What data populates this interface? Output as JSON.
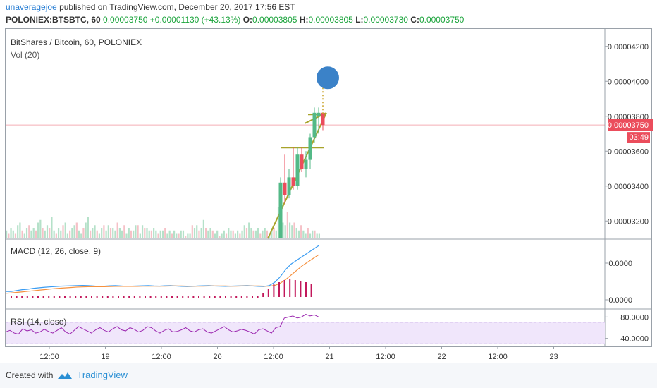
{
  "header": {
    "author": "unaveragejoe",
    "published_text": "published on TradingView.com, December 20, 2017 17:56 EST",
    "symbol": "POLONIEX:BTSBTC, 60",
    "last_price": "0.00003750",
    "change": "+0.00001130 (+43.13%)",
    "open_label": "O:",
    "open": "0.00003805",
    "high_label": "H:",
    "high": "0.00003805",
    "low_label": "L:",
    "low": "0.00003730",
    "close_label": "C:",
    "close": "0.00003750"
  },
  "chart_data": [
    {
      "type": "candlestick",
      "title": "BitShares / Bitcoin, 60, POLONIEX",
      "subtitle": "Vol (20)",
      "y_ticks": [
        "0.00004200",
        "0.00004000",
        "0.00003800",
        "0.00003600",
        "0.00003400",
        "0.00003200"
      ],
      "y_tick_values": [
        4.2e-05,
        4e-05,
        3.8e-05,
        3.6e-05,
        3.4e-05,
        3.2e-05
      ],
      "ylim": [
        3.1e-05,
        4.3e-05
      ],
      "last_price_label": "0.00003750",
      "last_price": 3.75e-05,
      "countdown_label": "03:49",
      "candles": [
        {
          "o": 3.1e-05,
          "h": 3.45e-05,
          "l": 3.1e-05,
          "c": 3.42e-05,
          "up": true
        },
        {
          "o": 3.42e-05,
          "h": 3.58e-05,
          "l": 3.3e-05,
          "c": 3.35e-05,
          "up": false
        },
        {
          "o": 3.35e-05,
          "h": 3.5e-05,
          "l": 3.33e-05,
          "c": 3.45e-05,
          "up": true
        },
        {
          "o": 3.45e-05,
          "h": 3.62e-05,
          "l": 3.38e-05,
          "c": 3.4e-05,
          "up": false
        },
        {
          "o": 3.4e-05,
          "h": 3.62e-05,
          "l": 3.38e-05,
          "c": 3.58e-05,
          "up": true
        },
        {
          "o": 3.58e-05,
          "h": 3.62e-05,
          "l": 3.48e-05,
          "c": 3.5e-05,
          "up": false
        },
        {
          "o": 3.5e-05,
          "h": 3.6e-05,
          "l": 3.45e-05,
          "c": 3.55e-05,
          "up": true
        },
        {
          "o": 3.55e-05,
          "h": 3.7e-05,
          "l": 3.5e-05,
          "c": 3.68e-05,
          "up": true
        },
        {
          "o": 3.68e-05,
          "h": 3.85e-05,
          "l": 3.65e-05,
          "c": 3.82e-05,
          "up": true
        },
        {
          "o": 3.82e-05,
          "h": 3.85e-05,
          "l": 3.7e-05,
          "c": 3.8e-05,
          "up": true
        },
        {
          "o": 3.82e-05,
          "h": 3.82e-05,
          "l": 3.72e-05,
          "c": 3.75e-05,
          "up": false
        }
      ],
      "volumes": [
        3,
        2,
        4,
        3,
        2,
        5,
        6,
        3,
        2,
        4,
        5,
        3,
        4,
        3,
        6,
        7,
        4,
        3,
        5,
        4,
        8,
        3,
        2,
        4,
        3,
        5,
        6,
        2,
        3,
        4,
        5,
        6,
        3,
        2,
        4,
        6,
        8,
        3,
        4,
        5,
        3,
        2,
        4,
        5,
        3,
        5,
        4,
        4,
        3,
        6,
        4,
        3,
        5,
        2,
        4,
        3,
        3,
        5,
        5,
        2,
        5,
        4,
        4,
        3,
        3,
        4,
        3,
        2,
        3,
        3,
        4,
        2,
        3,
        2,
        3,
        2,
        2,
        3,
        3,
        1,
        2,
        2,
        5,
        4,
        5,
        3,
        4,
        7,
        4,
        3,
        4,
        3,
        2,
        3,
        1,
        2,
        3,
        2,
        4,
        3,
        3,
        2,
        3,
        2,
        3,
        5,
        4,
        6,
        4,
        3,
        3,
        4,
        2,
        3,
        4,
        3,
        2,
        4,
        4,
        3,
        12,
        8,
        6,
        5,
        10,
        6,
        5,
        6,
        4,
        3,
        5,
        3,
        2,
        4,
        2,
        3,
        3,
        2,
        2
      ],
      "annotations": {
        "target_circle_price": 4.02e-05,
        "resistance_price": 3.62e-05
      }
    },
    {
      "type": "line",
      "title": "MACD (12, 26, close, 9)",
      "y_ticks": [
        "0.0000",
        "0.0000"
      ],
      "series": [
        {
          "values": [
            -2,
            -2,
            -1.5,
            -1,
            -0.8,
            -0.3,
            0,
            0.3,
            0.5,
            0.7,
            0.9,
            1,
            1.1,
            1.2,
            1.3,
            1.2,
            1,
            0.8,
            0.9,
            1.1,
            1.2,
            1,
            0.8,
            0.9,
            1,
            1.1,
            1.2,
            1,
            0.9,
            1.1,
            1.2,
            1,
            0.8,
            0.7,
            0.8,
            1,
            1.1,
            1.2,
            1,
            0.9,
            0.8,
            0.9,
            1,
            1.1,
            1.2,
            1,
            0.8,
            0.7,
            1.2,
            3,
            6,
            10,
            13,
            15,
            17,
            19,
            21,
            23
          ]
        },
        {
          "values": [
            -3,
            -2.8,
            -2.5,
            -2.2,
            -1.9,
            -1.6,
            -1.3,
            -1,
            -0.7,
            -0.4,
            -0.2,
            0,
            0.2,
            0.4,
            0.5,
            0.6,
            0.6,
            0.6,
            0.6,
            0.7,
            0.8,
            0.8,
            0.8,
            0.8,
            0.8,
            0.9,
            0.9,
            0.9,
            0.9,
            0.9,
            1,
            1,
            1,
            0.9,
            0.9,
            0.9,
            0.9,
            1,
            1,
            1,
            1,
            0.9,
            0.9,
            1,
            1,
            1,
            1,
            0.9,
            0.9,
            1.3,
            2.5,
            4.5,
            7,
            9.5,
            12,
            14,
            16,
            18
          ]
        }
      ],
      "histogram": [
        -1,
        -1,
        -1,
        -1,
        -1,
        -1,
        -1,
        -1,
        -1,
        -1,
        -1,
        -1,
        -1,
        -1,
        -1,
        -1,
        -1,
        -1,
        -1,
        -1,
        -1,
        -1,
        -1,
        -1,
        -1,
        -1,
        -1,
        -1,
        -1,
        -1,
        -1,
        -1,
        -1,
        -1,
        -1,
        -1,
        -1,
        -1,
        -1,
        -1,
        -1,
        -1,
        -1,
        -1,
        -1,
        -1,
        -1,
        1,
        2,
        3,
        3.5,
        4,
        4.2,
        4,
        3.8,
        3.5,
        3
      ]
    },
    {
      "type": "line",
      "title": "RSI (14, close)",
      "y_ticks": [
        "80.0000",
        "40.0000"
      ],
      "y_tick_values": [
        80,
        40
      ],
      "ylim": [
        25,
        95
      ],
      "band": [
        30,
        70
      ],
      "series": [
        {
          "values": [
            52,
            55,
            50,
            48,
            58,
            54,
            56,
            50,
            52,
            57,
            53,
            50,
            55,
            60,
            52,
            48,
            55,
            62,
            58,
            54,
            50,
            56,
            60,
            55,
            52,
            58,
            62,
            56,
            54,
            60,
            57,
            52,
            55,
            62,
            60,
            54,
            50,
            55,
            58,
            52,
            53,
            56,
            60,
            54,
            52,
            56,
            58,
            52,
            50,
            54,
            58,
            62,
            56,
            52,
            54,
            57,
            55,
            52,
            48,
            56,
            58,
            54,
            50,
            60,
            62,
            78,
            80,
            82,
            78,
            80,
            85,
            82,
            84,
            80
          ]
        }
      ]
    }
  ],
  "x_axis": {
    "labels": [
      "12:00",
      "19",
      "12:00",
      "20",
      "12:00",
      "21",
      "12:00",
      "22",
      "12:00",
      "23"
    ]
  },
  "footer": {
    "created_with": "Created with",
    "brand": "TradingView"
  },
  "colors": {
    "up": "#53b987",
    "down": "#eb4d5c",
    "macd": "#3a9cf2",
    "signal": "#f5913f",
    "hist": "#c2185b",
    "rsi": "#9c27b0",
    "rsi_band": "#f0e6fb",
    "price_line": "#eb4d5c",
    "trend": "#a8a32a",
    "circle": "#3b82c8"
  }
}
